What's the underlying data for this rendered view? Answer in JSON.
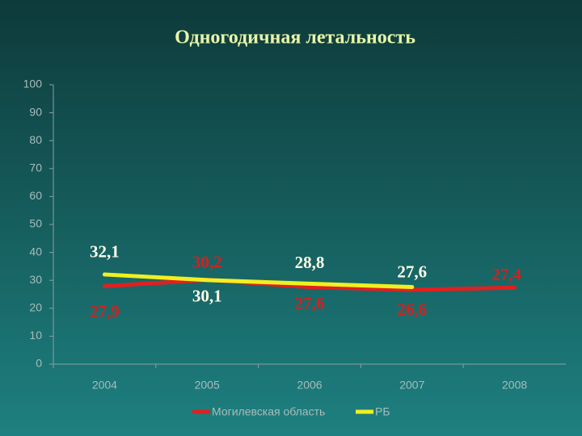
{
  "chart_data": {
    "type": "line",
    "title": "Одногодичная летальность",
    "categories": [
      "2004",
      "2005",
      "2006",
      "2007",
      "2008"
    ],
    "series": [
      {
        "name": "Могилевская область",
        "color": "#e02020",
        "values": [
          27.9,
          30.2,
          27.6,
          26.6,
          27.4
        ],
        "value_labels": [
          "27,9",
          "30,2",
          "27,6",
          "26,6",
          "27,4"
        ]
      },
      {
        "name": "РБ",
        "color": "#f0f020",
        "values": [
          32.1,
          30.1,
          28.8,
          27.6,
          null
        ],
        "value_labels": [
          "32,1",
          "30,1",
          "28,8",
          "27,6",
          null
        ]
      }
    ],
    "ylim": [
      0,
      100
    ],
    "yticks": [
      0,
      10,
      20,
      30,
      40,
      50,
      60,
      70,
      80,
      90,
      100
    ],
    "legend": "bottom"
  }
}
